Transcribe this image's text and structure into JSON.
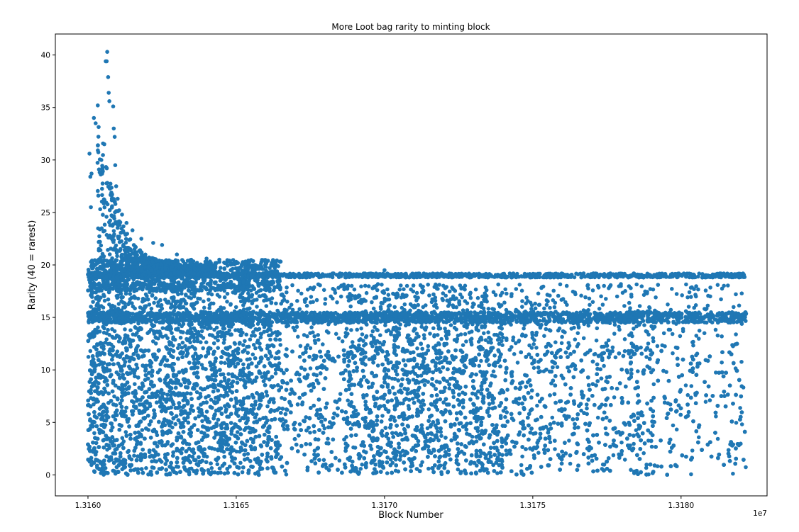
{
  "chart_data": {
    "type": "scatter",
    "title": "More Loot bag rarity to minting block",
    "xlabel": "Block Number",
    "ylabel": "Rarity (40 = rarest)",
    "x_offset_label": "1e7",
    "xlim": [
      1.31589,
      1.31829
    ],
    "ylim": [
      -2,
      42
    ],
    "xticks": [
      1.316,
      1.3165,
      1.317,
      1.3175,
      1.318
    ],
    "xtick_labels": [
      "1.3160",
      "1.3165",
      "1.3170",
      "1.3175",
      "1.3180"
    ],
    "yticks": [
      0,
      5,
      10,
      15,
      20,
      25,
      30,
      35,
      40
    ],
    "ytick_labels": [
      "0",
      "5",
      "10",
      "15",
      "20",
      "25",
      "30",
      "35",
      "40"
    ],
    "grid": false,
    "marker_color": "#1f77b4",
    "point_count_approx": 20000,
    "distribution": {
      "x_range": [
        1.316,
        1.31822
      ],
      "dense_band_y": [
        0,
        12
      ],
      "secondary_band_y": [
        14.5,
        15.5
      ],
      "upper_band_y": [
        18.8,
        19.2
      ],
      "peak_region": {
        "x": [
          1.31603,
          1.31612
        ],
        "y_max": 40.3
      }
    },
    "series": [
      {
        "values": [
          [
            1.316065,
            40.3
          ],
          [
            1.316063,
            39.4
          ],
          [
            1.31606,
            39.4
          ],
          [
            1.316068,
            37.9
          ],
          [
            1.31607,
            36.4
          ],
          [
            1.316072,
            35.6
          ],
          [
            1.316033,
            35.2
          ],
          [
            1.316085,
            35.1
          ],
          [
            1.31602,
            34.0
          ],
          [
            1.316026,
            33.5
          ],
          [
            1.316087,
            33.0
          ],
          [
            1.31609,
            32.2
          ],
          [
            1.316055,
            31.5
          ],
          [
            1.316005,
            30.6
          ],
          [
            1.316045,
            30.0
          ],
          [
            1.316092,
            29.5
          ],
          [
            1.316008,
            28.4
          ],
          [
            1.316012,
            28.7
          ],
          [
            1.31605,
            28.9
          ],
          [
            1.316095,
            27.5
          ],
          [
            1.3161,
            26.3
          ],
          [
            1.316035,
            26.6
          ],
          [
            1.316105,
            25.2
          ],
          [
            1.31601,
            25.5
          ],
          [
            1.316115,
            24.8
          ],
          [
            1.31613,
            24.0
          ],
          [
            1.31615,
            23.3
          ],
          [
            1.31618,
            22.5
          ],
          [
            1.31622,
            22.1
          ],
          [
            1.31625,
            21.9
          ],
          [
            1.3163,
            21.0
          ],
          [
            1.3164,
            20.6
          ],
          [
            1.3165,
            20.3
          ],
          [
            1.3166,
            19.8
          ],
          [
            1.317,
            19.5
          ],
          [
            1.3175,
            19.0
          ],
          [
            1.318,
            19.0
          ],
          [
            1.3182,
            19.0
          ]
        ]
      }
    ]
  }
}
